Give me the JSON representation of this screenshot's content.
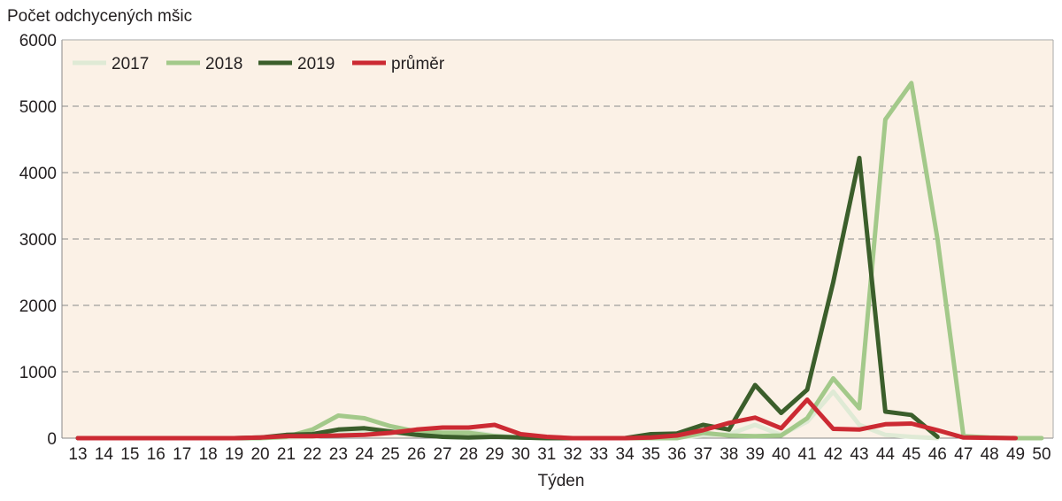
{
  "chart_data": {
    "type": "line",
    "title": "",
    "ylabel": "Počet odchycených mšic",
    "xlabel": "Týden",
    "ylim": [
      0,
      6000
    ],
    "yticks": [
      0,
      1000,
      2000,
      3000,
      4000,
      5000,
      6000
    ],
    "grid": true,
    "legend_position": "top-left",
    "x": [
      13,
      14,
      15,
      16,
      17,
      18,
      19,
      20,
      21,
      22,
      23,
      24,
      25,
      26,
      27,
      28,
      29,
      30,
      31,
      32,
      33,
      34,
      35,
      36,
      37,
      38,
      39,
      40,
      41,
      42,
      43,
      44,
      45,
      46,
      47,
      48,
      49,
      50
    ],
    "series": [
      {
        "name": "2017",
        "color": "#dfeAd5",
        "values": [
          0,
          0,
          0,
          0,
          0,
          0,
          0,
          0,
          10,
          20,
          60,
          100,
          80,
          60,
          120,
          100,
          40,
          10,
          0,
          0,
          0,
          0,
          0,
          10,
          40,
          60,
          200,
          50,
          250,
          700,
          200,
          50,
          20,
          0,
          null,
          null,
          null,
          null
        ]
      },
      {
        "name": "2018",
        "color": "#a3c98a",
        "values": [
          0,
          0,
          0,
          0,
          0,
          0,
          0,
          0,
          20,
          130,
          340,
          300,
          180,
          100,
          80,
          80,
          30,
          10,
          0,
          0,
          0,
          0,
          0,
          0,
          80,
          40,
          30,
          40,
          300,
          900,
          450,
          4800,
          5350,
          3000,
          30,
          10,
          0,
          0
        ]
      },
      {
        "name": "2019",
        "color": "#3b5e2b",
        "values": [
          0,
          0,
          0,
          0,
          0,
          0,
          0,
          10,
          50,
          60,
          130,
          150,
          100,
          50,
          20,
          10,
          20,
          10,
          0,
          0,
          0,
          0,
          60,
          70,
          200,
          130,
          800,
          380,
          730,
          2350,
          4220,
          400,
          350,
          20,
          null,
          null,
          null,
          null
        ]
      },
      {
        "name": "průměr",
        "color": "#cc2a33",
        "values": [
          0,
          0,
          0,
          0,
          0,
          0,
          0,
          10,
          30,
          30,
          40,
          50,
          80,
          130,
          160,
          160,
          200,
          60,
          20,
          0,
          0,
          0,
          10,
          40,
          120,
          230,
          310,
          150,
          580,
          140,
          130,
          210,
          220,
          120,
          10,
          5,
          0,
          null
        ]
      }
    ]
  }
}
